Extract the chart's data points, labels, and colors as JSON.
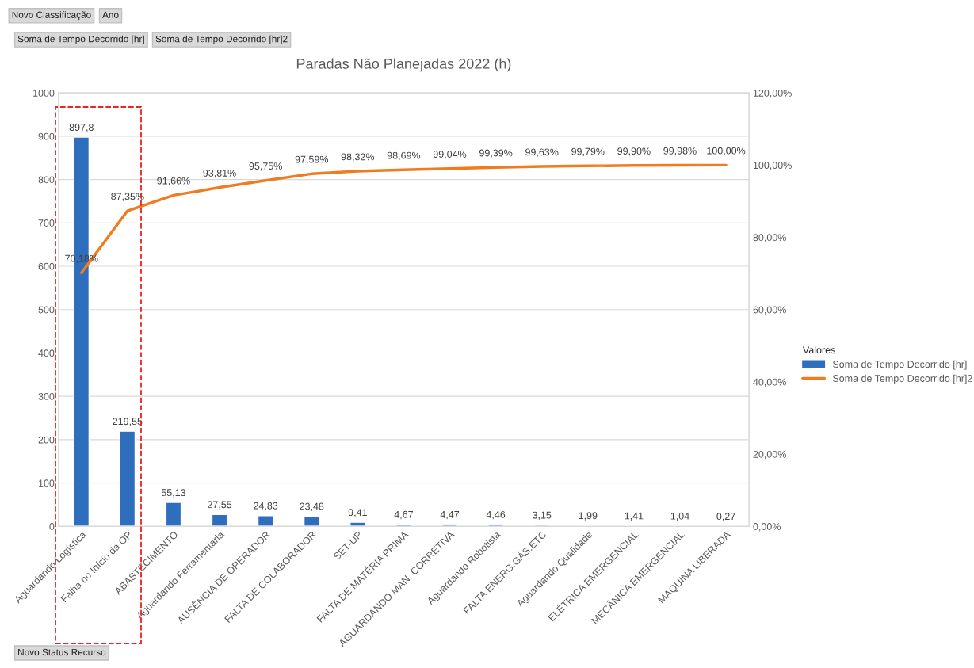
{
  "chart_data": {
    "type": "bar",
    "title": "Paradas Não Planejadas 2022 (h)",
    "categories": [
      "Aguardando Logística",
      "Falha no Início da OP",
      "ABASTECIMENTO",
      "Aguardando Ferramentaria",
      "AUSÊNCIA DE OPERADOR",
      "FALTA DE COLABORADOR",
      "SET-UP",
      "FALTA DE MATÉRIA PRIMA",
      "AGUARDANDO MAN. CORRETIVA",
      "Aguardando Robotista",
      "FALTA ENERG.GÁS.ETC",
      "Aguardando Qualidade",
      "ELÉTRICA EMERGENCIAL",
      "MECÂNICA EMERGENCIAL",
      "MAQUINA LIBERADA"
    ],
    "series": [
      {
        "name": "Soma de Tempo Decorrido [hr]",
        "color": "#2e6ebd",
        "values": [
          897.8,
          219.55,
          55.13,
          27.55,
          24.83,
          23.48,
          9.41,
          4.67,
          4.47,
          4.46,
          3.15,
          1.99,
          1.41,
          1.04,
          0.27
        ],
        "value_labels": [
          "897,8",
          "219,55",
          "55,13",
          "27,55",
          "24,83",
          "23,48",
          "9,41",
          "4,67",
          "4,47",
          "4,46",
          "3,15",
          "1,99",
          "1,41",
          "1,04",
          "0,27"
        ]
      },
      {
        "name": "Soma de Tempo Decorrido [hr]2",
        "type": "line",
        "axis": "y2",
        "color": "#f07c22",
        "values": [
          70.18,
          87.35,
          91.66,
          93.81,
          95.75,
          97.59,
          98.32,
          98.69,
          99.04,
          99.39,
          99.63,
          99.79,
          99.9,
          99.98,
          100.0
        ],
        "value_labels": [
          "70,18%",
          "87,35%",
          "91,66%",
          "93,81%",
          "95,75%",
          "97,59%",
          "98,32%",
          "98,69%",
          "99,04%",
          "99,39%",
          "99,63%",
          "99,79%",
          "99,90%",
          "99,98%",
          "100,00%"
        ]
      }
    ],
    "ylim": [
      0,
      1000
    ],
    "yticks": [
      0,
      100,
      200,
      300,
      400,
      500,
      600,
      700,
      800,
      900,
      1000
    ],
    "y2lim": [
      0,
      120
    ],
    "y2ticks": [
      {
        "value": 0,
        "label": "0,00%"
      },
      {
        "value": 20,
        "label": "20,00%"
      },
      {
        "value": 40,
        "label": "40,00%"
      },
      {
        "value": 60,
        "label": "60,00%"
      },
      {
        "value": 80,
        "label": "80,00%"
      },
      {
        "value": 100,
        "label": "100,00%"
      },
      {
        "value": 120,
        "label": "120,00%"
      }
    ],
    "grid": "y",
    "legend": "right",
    "legend_title": "Valores",
    "marker": "none",
    "line_style": "solid",
    "annotations": [
      "Novo Classificação",
      "Ano",
      "Soma de Tempo Decorrido [hr]",
      "Soma de Tempo Decorrido [hr]2",
      "Novo Status Recurso"
    ]
  }
}
